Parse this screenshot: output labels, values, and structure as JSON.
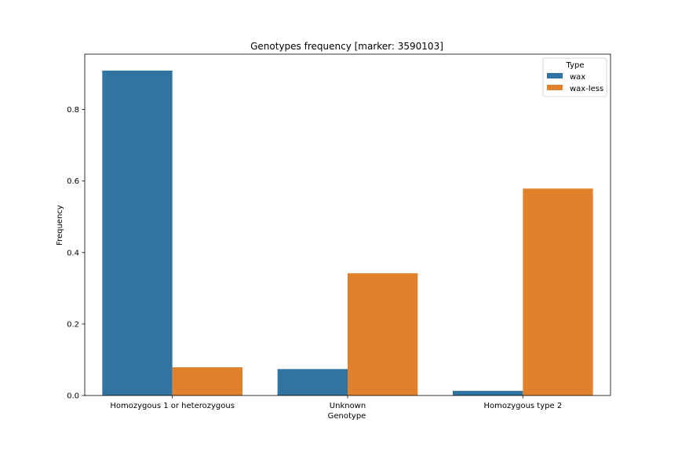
{
  "chart_data": {
    "type": "bar",
    "title": "Genotypes frequency [marker: 3590103]",
    "xlabel": "Genotype",
    "ylabel": "Frequency",
    "categories": [
      "Homozygous 1 or heterozygous",
      "Unknown",
      "Homozygous type 2"
    ],
    "series": [
      {
        "name": "wax",
        "color": "#3274a1",
        "values": [
          0.909,
          0.074,
          0.013
        ]
      },
      {
        "name": "wax-less",
        "color": "#e1812c",
        "values": [
          0.079,
          0.342,
          0.579
        ]
      }
    ],
    "ylim": [
      0,
      0.955
    ],
    "yticks": [
      0.0,
      0.2,
      0.4,
      0.6,
      0.8
    ],
    "ytick_labels": [
      "0.0",
      "0.2",
      "0.4",
      "0.6",
      "0.8"
    ],
    "legend": {
      "title": "Type",
      "placement": "top-right"
    },
    "grid": false
  }
}
